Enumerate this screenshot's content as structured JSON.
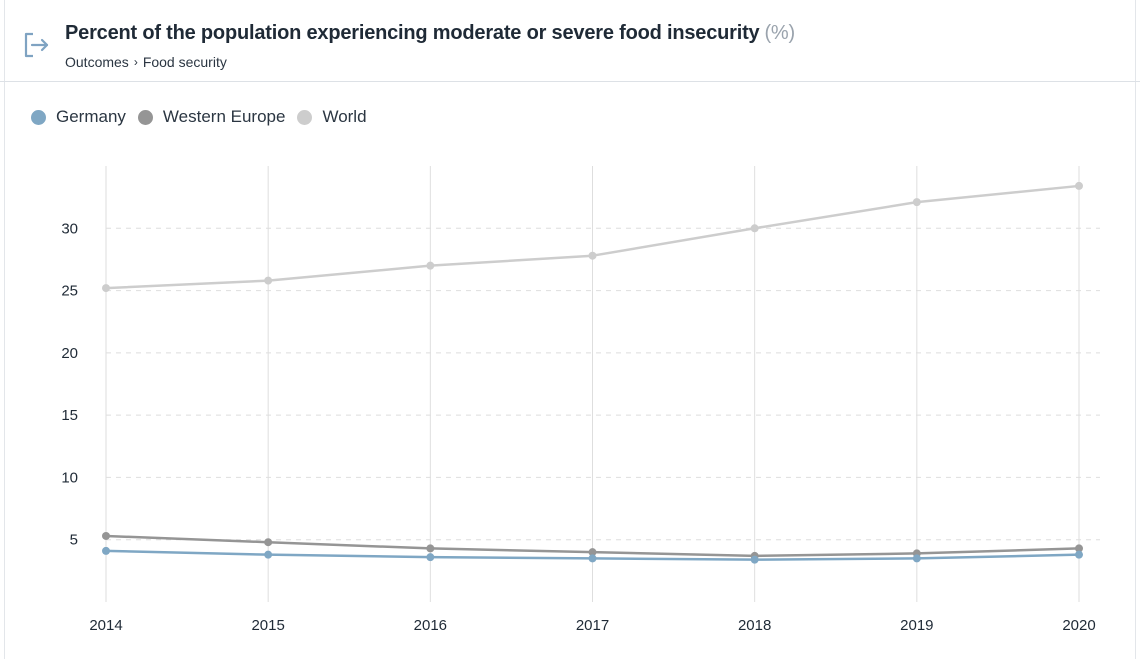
{
  "header": {
    "title": "Percent of the population experiencing moderate or severe food insecurity",
    "unit": "(%)",
    "breadcrumb": [
      "Outcomes",
      "Food security"
    ],
    "breadcrumb_separator": "›"
  },
  "colors": {
    "germany": "#7fa7c4",
    "western_europe": "#959595",
    "world": "#cdcdcd",
    "gridline": "#dedede",
    "text": "#1f2a36"
  },
  "icons": {
    "header": "exit-arrow-icon"
  },
  "chart_data": {
    "type": "line",
    "title": "Percent of the population experiencing moderate or severe food insecurity",
    "xlabel": "",
    "ylabel": "",
    "x": [
      2014,
      2015,
      2016,
      2017,
      2018,
      2019,
      2020
    ],
    "x_tick_labels": [
      "2014",
      "2015",
      "2016",
      "2017",
      "2018",
      "2019",
      "2020"
    ],
    "y_ticks": [
      5,
      10,
      15,
      20,
      25,
      30
    ],
    "y_tick_labels": [
      "5",
      "10",
      "15",
      "20",
      "25",
      "30"
    ],
    "ylim": [
      0,
      35
    ],
    "grid": {
      "vertical": true,
      "horizontal_dashed": true
    },
    "legend_position": "top-left",
    "series": [
      {
        "name": "Germany",
        "color": "#7fa7c4",
        "values": [
          4.1,
          3.8,
          3.6,
          3.5,
          3.4,
          3.5,
          3.8
        ]
      },
      {
        "name": "Western Europe",
        "color": "#959595",
        "values": [
          5.3,
          4.8,
          4.3,
          4.0,
          3.7,
          3.9,
          4.3
        ]
      },
      {
        "name": "World",
        "color": "#cdcdcd",
        "values": [
          25.2,
          25.8,
          27.0,
          27.8,
          30.0,
          32.1,
          33.4
        ]
      }
    ]
  }
}
